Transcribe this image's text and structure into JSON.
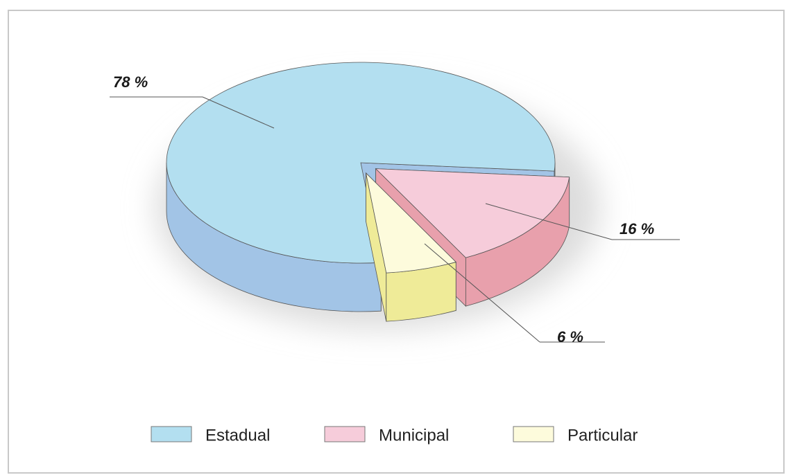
{
  "chart_data": {
    "type": "pie3d",
    "categories": [
      "Estadual",
      "Municipal",
      "Particular"
    ],
    "values": [
      78,
      16,
      6
    ],
    "value_labels": [
      "78 %",
      "16 %",
      "6 %"
    ],
    "colors": [
      "#b3dff0",
      "#f6ccda",
      "#fdfbdc"
    ],
    "side_colors": [
      "#a2c4e6",
      "#e8a0ac",
      "#efeb98"
    ],
    "legend": "bottom"
  }
}
